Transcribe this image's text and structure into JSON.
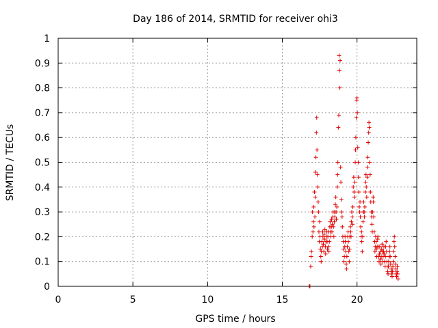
{
  "chart_data": {
    "type": "scatter",
    "title": "Day 186 of 2014, SRMTID for receiver ohi3",
    "xlabel": "GPS time / hours",
    "ylabel": "SRMTID / TECUs",
    "xlim": [
      0,
      24
    ],
    "ylim": [
      0,
      1
    ],
    "grid": true,
    "marker": "+",
    "color": "#e00000",
    "x_ticks": [
      0,
      5,
      10,
      15,
      20
    ],
    "y_ticks": [
      0,
      0.1,
      0.2,
      0.3,
      0.4,
      0.5,
      0.6,
      0.7,
      0.8,
      0.9,
      1
    ],
    "x_tick_labels": [
      "0",
      "5",
      "10",
      "15",
      "20"
    ],
    "y_tick_labels": [
      "0",
      "0.1",
      "0.2",
      "0.3",
      "0.4",
      "0.5",
      "0.6",
      "0.7",
      "0.8",
      "0.9",
      "1"
    ],
    "series": [
      {
        "name": "ohi3",
        "points": [
          [
            16.8,
            0.0
          ],
          [
            16.85,
            0.0
          ],
          [
            16.9,
            0.08
          ],
          [
            16.92,
            0.12
          ],
          [
            16.95,
            0.14
          ],
          [
            17.0,
            0.2
          ],
          [
            17.02,
            0.3
          ],
          [
            17.05,
            0.22
          ],
          [
            17.08,
            0.26
          ],
          [
            17.1,
            0.32
          ],
          [
            17.12,
            0.24
          ],
          [
            17.15,
            0.38
          ],
          [
            17.18,
            0.28
          ],
          [
            17.2,
            0.36
          ],
          [
            17.22,
            0.46
          ],
          [
            17.25,
            0.52
          ],
          [
            17.28,
            0.62
          ],
          [
            17.3,
            0.68
          ],
          [
            17.32,
            0.55
          ],
          [
            17.35,
            0.45
          ],
          [
            17.38,
            0.4
          ],
          [
            17.4,
            0.34
          ],
          [
            17.42,
            0.3
          ],
          [
            17.45,
            0.22
          ],
          [
            17.48,
            0.18
          ],
          [
            17.5,
            0.26
          ],
          [
            17.52,
            0.2
          ],
          [
            17.55,
            0.15
          ],
          [
            17.58,
            0.12
          ],
          [
            17.6,
            0.1
          ],
          [
            17.62,
            0.14
          ],
          [
            17.65,
            0.18
          ],
          [
            17.68,
            0.16
          ],
          [
            17.7,
            0.22
          ],
          [
            17.72,
            0.2
          ],
          [
            17.75,
            0.17
          ],
          [
            17.78,
            0.14
          ],
          [
            17.8,
            0.21
          ],
          [
            17.82,
            0.19
          ],
          [
            17.85,
            0.23
          ],
          [
            17.88,
            0.16
          ],
          [
            17.9,
            0.13
          ],
          [
            17.92,
            0.18
          ],
          [
            17.95,
            0.2
          ],
          [
            17.98,
            0.22
          ],
          [
            18.0,
            0.18
          ],
          [
            18.02,
            0.15
          ],
          [
            18.05,
            0.2
          ],
          [
            18.08,
            0.22
          ],
          [
            18.1,
            0.16
          ],
          [
            18.12,
            0.14
          ],
          [
            18.15,
            0.18
          ],
          [
            18.18,
            0.24
          ],
          [
            18.2,
            0.26
          ],
          [
            18.22,
            0.22
          ],
          [
            18.25,
            0.2
          ],
          [
            18.28,
            0.24
          ],
          [
            18.3,
            0.27
          ],
          [
            18.32,
            0.22
          ],
          [
            18.35,
            0.25
          ],
          [
            18.38,
            0.28
          ],
          [
            18.4,
            0.3
          ],
          [
            18.42,
            0.24
          ],
          [
            18.45,
            0.2
          ],
          [
            18.48,
            0.26
          ],
          [
            18.5,
            0.3
          ],
          [
            18.52,
            0.28
          ],
          [
            18.55,
            0.33
          ],
          [
            18.58,
            0.36
          ],
          [
            18.6,
            0.3
          ],
          [
            18.62,
            0.27
          ],
          [
            18.65,
            0.32
          ],
          [
            18.68,
            0.4
          ],
          [
            18.7,
            0.45
          ],
          [
            18.72,
            0.5
          ],
          [
            18.75,
            0.64
          ],
          [
            18.78,
            0.69
          ],
          [
            18.8,
            0.93
          ],
          [
            18.82,
            0.87
          ],
          [
            18.85,
            0.8
          ],
          [
            18.87,
            0.91
          ],
          [
            18.9,
            0.48
          ],
          [
            18.92,
            0.42
          ],
          [
            18.95,
            0.35
          ],
          [
            18.98,
            0.3
          ],
          [
            19.0,
            0.28
          ],
          [
            19.02,
            0.24
          ],
          [
            19.05,
            0.2
          ],
          [
            19.08,
            0.18
          ],
          [
            19.1,
            0.15
          ],
          [
            19.12,
            0.1
          ],
          [
            19.15,
            0.12
          ],
          [
            19.18,
            0.16
          ],
          [
            19.2,
            0.2
          ],
          [
            19.22,
            0.18
          ],
          [
            19.25,
            0.14
          ],
          [
            19.28,
            0.09
          ],
          [
            19.3,
            0.07
          ],
          [
            19.32,
            0.12
          ],
          [
            19.35,
            0.16
          ],
          [
            19.38,
            0.2
          ],
          [
            19.4,
            0.22
          ],
          [
            19.42,
            0.18
          ],
          [
            19.45,
            0.14
          ],
          [
            19.48,
            0.1
          ],
          [
            19.5,
            0.15
          ],
          [
            19.52,
            0.2
          ],
          [
            19.55,
            0.24
          ],
          [
            19.58,
            0.22
          ],
          [
            19.6,
            0.2
          ],
          [
            19.62,
            0.26
          ],
          [
            19.65,
            0.3
          ],
          [
            19.68,
            0.28
          ],
          [
            19.7,
            0.25
          ],
          [
            19.72,
            0.32
          ],
          [
            19.75,
            0.4
          ],
          [
            19.78,
            0.44
          ],
          [
            19.8,
            0.38
          ],
          [
            19.82,
            0.36
          ],
          [
            19.85,
            0.42
          ],
          [
            19.88,
            0.5
          ],
          [
            19.9,
            0.55
          ],
          [
            19.92,
            0.6
          ],
          [
            19.95,
            0.68
          ],
          [
            19.98,
            0.75
          ],
          [
            20.0,
            0.76
          ],
          [
            20.02,
            0.7
          ],
          [
            20.05,
            0.56
          ],
          [
            20.08,
            0.5
          ],
          [
            20.1,
            0.44
          ],
          [
            20.12,
            0.38
          ],
          [
            20.15,
            0.32
          ],
          [
            20.18,
            0.3
          ],
          [
            20.2,
            0.34
          ],
          [
            20.22,
            0.28
          ],
          [
            20.25,
            0.24
          ],
          [
            20.28,
            0.2
          ],
          [
            20.3,
            0.22
          ],
          [
            20.32,
            0.18
          ],
          [
            20.35,
            0.14
          ],
          [
            20.38,
            0.2
          ],
          [
            20.4,
            0.26
          ],
          [
            20.42,
            0.3
          ],
          [
            20.45,
            0.34
          ],
          [
            20.48,
            0.3
          ],
          [
            20.5,
            0.28
          ],
          [
            20.52,
            0.32
          ],
          [
            20.55,
            0.38
          ],
          [
            20.58,
            0.42
          ],
          [
            20.6,
            0.45
          ],
          [
            20.62,
            0.4
          ],
          [
            20.65,
            0.36
          ],
          [
            20.68,
            0.44
          ],
          [
            20.7,
            0.48
          ],
          [
            20.72,
            0.52
          ],
          [
            20.75,
            0.58
          ],
          [
            20.78,
            0.62
          ],
          [
            20.8,
            0.66
          ],
          [
            20.82,
            0.64
          ],
          [
            20.85,
            0.5
          ],
          [
            20.88,
            0.45
          ],
          [
            20.9,
            0.38
          ],
          [
            20.92,
            0.34
          ],
          [
            20.95,
            0.3
          ],
          [
            20.98,
            0.28
          ],
          [
            21.0,
            0.25
          ],
          [
            21.02,
            0.22
          ],
          [
            21.05,
            0.3
          ],
          [
            21.08,
            0.36
          ],
          [
            21.1,
            0.34
          ],
          [
            21.12,
            0.28
          ],
          [
            21.15,
            0.22
          ],
          [
            21.18,
            0.18
          ],
          [
            21.2,
            0.14
          ],
          [
            21.22,
            0.16
          ],
          [
            21.25,
            0.2
          ],
          [
            21.28,
            0.18
          ],
          [
            21.3,
            0.15
          ],
          [
            21.32,
            0.12
          ],
          [
            21.35,
            0.16
          ],
          [
            21.38,
            0.19
          ],
          [
            21.4,
            0.2
          ],
          [
            21.42,
            0.16
          ],
          [
            21.45,
            0.12
          ],
          [
            21.48,
            0.1
          ],
          [
            21.5,
            0.13
          ],
          [
            21.52,
            0.16
          ],
          [
            21.55,
            0.14
          ],
          [
            21.58,
            0.11
          ],
          [
            21.6,
            0.09
          ],
          [
            21.62,
            0.12
          ],
          [
            21.65,
            0.15
          ],
          [
            21.68,
            0.17
          ],
          [
            21.7,
            0.14
          ],
          [
            21.72,
            0.1
          ],
          [
            21.75,
            0.12
          ],
          [
            21.78,
            0.14
          ],
          [
            21.8,
            0.16
          ],
          [
            21.82,
            0.13
          ],
          [
            21.85,
            0.1
          ],
          [
            21.88,
            0.08
          ],
          [
            21.9,
            0.12
          ],
          [
            21.92,
            0.16
          ],
          [
            21.95,
            0.18
          ],
          [
            21.98,
            0.14
          ],
          [
            22.0,
            0.1
          ],
          [
            22.02,
            0.08
          ],
          [
            22.05,
            0.06
          ],
          [
            22.08,
            0.05
          ],
          [
            22.1,
            0.08
          ],
          [
            22.12,
            0.1
          ],
          [
            22.15,
            0.12
          ],
          [
            22.18,
            0.14
          ],
          [
            22.2,
            0.16
          ],
          [
            22.22,
            0.12
          ],
          [
            22.25,
            0.09
          ],
          [
            22.28,
            0.07
          ],
          [
            22.3,
            0.06
          ],
          [
            22.32,
            0.05
          ],
          [
            22.35,
            0.04
          ],
          [
            22.38,
            0.06
          ],
          [
            22.4,
            0.08
          ],
          [
            22.42,
            0.1
          ],
          [
            22.45,
            0.14
          ],
          [
            22.48,
            0.18
          ],
          [
            22.5,
            0.2
          ],
          [
            22.52,
            0.16
          ],
          [
            22.55,
            0.12
          ],
          [
            22.58,
            0.09
          ],
          [
            22.6,
            0.07
          ],
          [
            22.62,
            0.05
          ],
          [
            22.65,
            0.04
          ],
          [
            22.68,
            0.06
          ],
          [
            22.7,
            0.08
          ],
          [
            22.72,
            0.05
          ],
          [
            22.75,
            0.03
          ]
        ]
      }
    ]
  }
}
